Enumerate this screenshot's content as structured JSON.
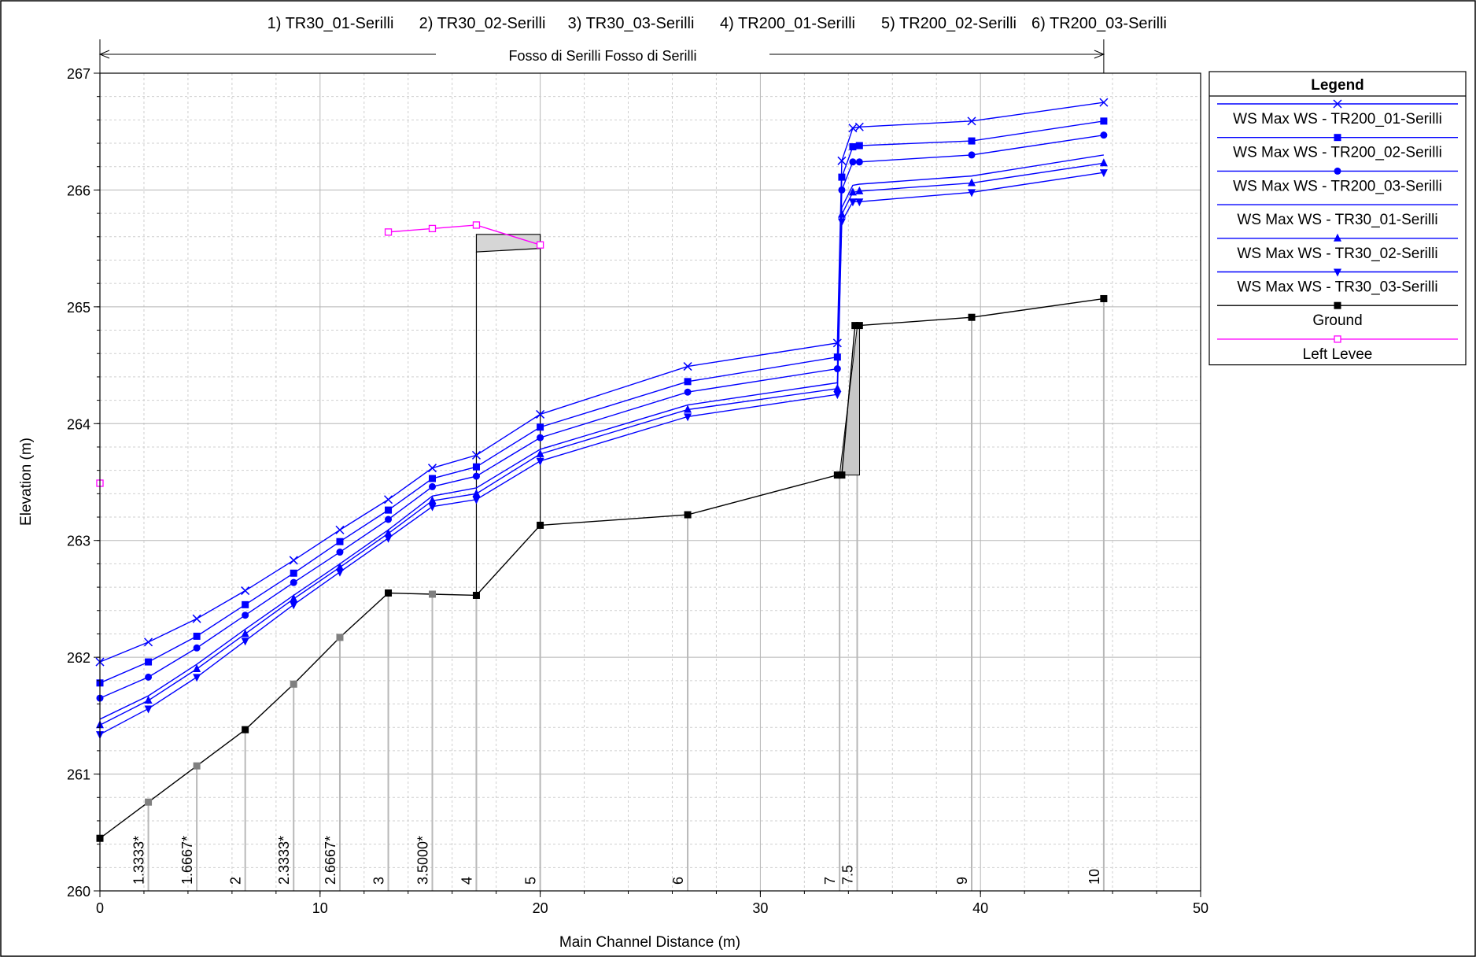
{
  "chart_data": {
    "type": "line",
    "plans_header": [
      "1) TR30_01-Serilli",
      "2) TR30_02-Serilli",
      "3) TR30_03-Serilli",
      "4) TR200_01-Serilli",
      "5) TR200_02-Serilli",
      "6) TR200_03-Serilli"
    ],
    "reach_label": "Fosso di Serilli Fosso di Serilli",
    "xlabel": "Main Channel Distance (m)",
    "ylabel": "Elevation (m)",
    "xlim": [
      0,
      50
    ],
    "ylim": [
      260,
      267
    ],
    "x_ticks": [
      0,
      10,
      20,
      30,
      40,
      50
    ],
    "y_ticks": [
      260,
      261,
      262,
      263,
      264,
      265,
      266,
      267
    ],
    "grid": true,
    "legend_title": "Legend",
    "legend_position": "right",
    "stations": [
      {
        "label": "1.3333*",
        "x": 2.2,
        "interpolated": true
      },
      {
        "label": "1.6667*",
        "x": 4.4,
        "interpolated": true
      },
      {
        "label": "2",
        "x": 6.6,
        "interpolated": false
      },
      {
        "label": "2.3333*",
        "x": 8.8,
        "interpolated": true
      },
      {
        "label": "2.6667*",
        "x": 10.9,
        "interpolated": true
      },
      {
        "label": "3",
        "x": 13.1,
        "interpolated": false
      },
      {
        "label": "3.5000*",
        "x": 15.1,
        "interpolated": true
      },
      {
        "label": "4",
        "x": 17.1,
        "interpolated": false
      },
      {
        "label": "5",
        "x": 20.0,
        "interpolated": false
      },
      {
        "label": "6",
        "x": 26.7,
        "interpolated": false
      },
      {
        "label": "7",
        "x": 33.6,
        "interpolated": false
      },
      {
        "label": "7.5",
        "x": 34.4,
        "interpolated": false
      },
      {
        "label": "9",
        "x": 39.6,
        "interpolated": false
      },
      {
        "label": "10",
        "x": 45.6,
        "interpolated": false
      }
    ],
    "series": [
      {
        "name": "WS  Max WS - TR200_01-Serilli",
        "color": "#0000ff",
        "marker": "x",
        "x": [
          0,
          2.2,
          4.4,
          6.6,
          8.8,
          10.9,
          13.1,
          15.1,
          17.1,
          20.0,
          26.7,
          33.5,
          33.7,
          34.2,
          34.5,
          39.6,
          45.6
        ],
        "y": [
          261.96,
          262.13,
          262.33,
          262.57,
          262.83,
          263.09,
          263.35,
          263.62,
          263.73,
          264.08,
          264.49,
          264.69,
          266.25,
          266.53,
          266.54,
          266.59,
          266.75
        ]
      },
      {
        "name": "WS  Max WS - TR200_02-Serilli",
        "color": "#0000ff",
        "marker": "square",
        "x": [
          0,
          2.2,
          4.4,
          6.6,
          8.8,
          10.9,
          13.1,
          15.1,
          17.1,
          20.0,
          26.7,
          33.5,
          33.7,
          34.2,
          34.5,
          39.6,
          45.6
        ],
        "y": [
          261.78,
          261.96,
          262.18,
          262.45,
          262.72,
          262.99,
          263.26,
          263.53,
          263.63,
          263.97,
          264.36,
          264.57,
          266.11,
          266.37,
          266.38,
          266.42,
          266.59
        ]
      },
      {
        "name": "WS  Max WS - TR200_03-Serilli",
        "color": "#0000ff",
        "marker": "circle",
        "x": [
          0,
          2.2,
          4.4,
          6.6,
          8.8,
          10.9,
          13.1,
          15.1,
          17.1,
          20.0,
          26.7,
          33.5,
          33.7,
          34.2,
          34.5,
          39.6,
          45.6
        ],
        "y": [
          261.65,
          261.83,
          262.08,
          262.36,
          262.64,
          262.9,
          263.18,
          263.46,
          263.55,
          263.88,
          264.27,
          264.47,
          266.0,
          266.24,
          266.24,
          266.3,
          266.47
        ]
      },
      {
        "name": "WS  Max WS - TR30_01-Serilli",
        "color": "#0000ff",
        "marker": "none",
        "x": [
          0,
          2.2,
          4.4,
          6.6,
          8.8,
          10.9,
          13.1,
          15.1,
          17.1,
          20.0,
          26.7,
          33.5,
          33.7,
          34.2,
          34.5,
          39.6,
          45.6
        ],
        "y": [
          261.47,
          261.67,
          261.94,
          262.24,
          262.53,
          262.8,
          263.09,
          263.38,
          263.45,
          263.78,
          264.16,
          264.35,
          265.85,
          266.04,
          266.05,
          266.12,
          266.3
        ]
      },
      {
        "name": "WS  Max WS - TR30_02-Serilli",
        "color": "#0000ff",
        "marker": "triangle-up",
        "x": [
          0,
          2.2,
          4.4,
          6.6,
          8.8,
          10.9,
          13.1,
          15.1,
          17.1,
          20.0,
          26.7,
          33.5,
          33.7,
          34.2,
          34.5,
          39.6,
          45.6
        ],
        "y": [
          261.42,
          261.63,
          261.9,
          262.2,
          262.5,
          262.77,
          263.06,
          263.34,
          263.4,
          263.74,
          264.12,
          264.3,
          265.79,
          265.98,
          265.99,
          266.06,
          266.23
        ]
      },
      {
        "name": "WS  Max WS - TR30_03-Serilli",
        "color": "#0000ff",
        "marker": "triangle-down",
        "x": [
          0,
          2.2,
          4.4,
          6.6,
          8.8,
          10.9,
          13.1,
          15.1,
          17.1,
          20.0,
          26.7,
          33.5,
          33.7,
          34.2,
          34.5,
          39.6,
          45.6
        ],
        "y": [
          261.34,
          261.56,
          261.83,
          262.14,
          262.45,
          262.73,
          263.02,
          263.29,
          263.35,
          263.68,
          264.06,
          264.25,
          265.73,
          265.9,
          265.9,
          265.98,
          266.15
        ]
      },
      {
        "name": "Ground",
        "color": "#000000",
        "marker": "square",
        "x": [
          0,
          2.2,
          4.4,
          6.6,
          8.8,
          10.9,
          13.1,
          15.1,
          17.1,
          20.0,
          26.7,
          33.5,
          33.7,
          34.3,
          34.5,
          39.6,
          45.6
        ],
        "y": [
          260.45,
          260.76,
          261.07,
          261.38,
          261.77,
          262.17,
          262.55,
          262.54,
          262.53,
          263.13,
          263.22,
          263.56,
          263.56,
          264.84,
          264.84,
          264.91,
          265.07
        ],
        "interpolated_x": [
          2.2,
          4.4,
          8.8,
          10.9,
          15.1
        ]
      },
      {
        "name": "Left Levee",
        "color": "#ff00ff",
        "marker": "open-square",
        "x": [
          13.1,
          15.1,
          17.1,
          20.0
        ],
        "y": [
          265.64,
          265.67,
          265.7,
          265.53
        ],
        "isolated_point": {
          "x": 0,
          "y": 263.49
        }
      }
    ],
    "structures": [
      {
        "type": "bridge-deck",
        "x": [
          17.1,
          20.0
        ],
        "deck_top": 265.62,
        "low_chord_left": 265.47,
        "low_chord_right": 265.5
      },
      {
        "type": "weir-wall",
        "x": [
          33.6,
          34.4
        ],
        "top": 264.83
      }
    ]
  }
}
